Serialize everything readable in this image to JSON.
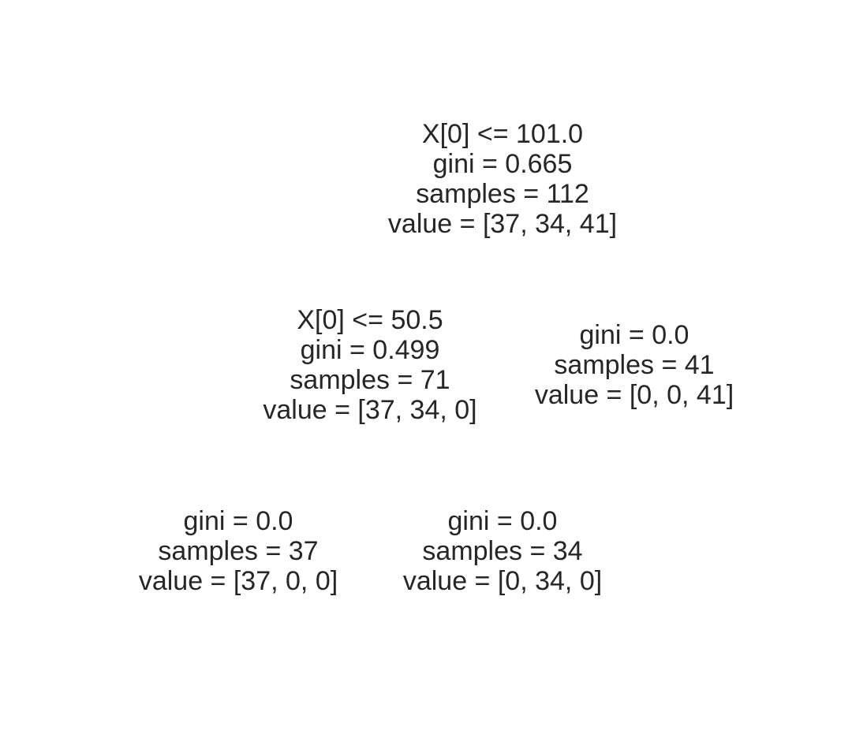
{
  "tree": {
    "root": {
      "split": "X[0] <= 101.0",
      "gini": "gini = 0.665",
      "samples": "samples = 112",
      "value": "value = [37, 34, 41]"
    },
    "left": {
      "split": "X[0] <= 50.5",
      "gini": "gini = 0.499",
      "samples": "samples = 71",
      "value": "value = [37, 34, 0]"
    },
    "right": {
      "gini": "gini = 0.0",
      "samples": "samples = 41",
      "value": "value = [0, 0, 41]"
    },
    "left_left": {
      "gini": "gini = 0.0",
      "samples": "samples = 37",
      "value": "value = [37, 0, 0]"
    },
    "left_right": {
      "gini": "gini = 0.0",
      "samples": "samples = 34",
      "value": "value = [0, 34, 0]"
    }
  }
}
